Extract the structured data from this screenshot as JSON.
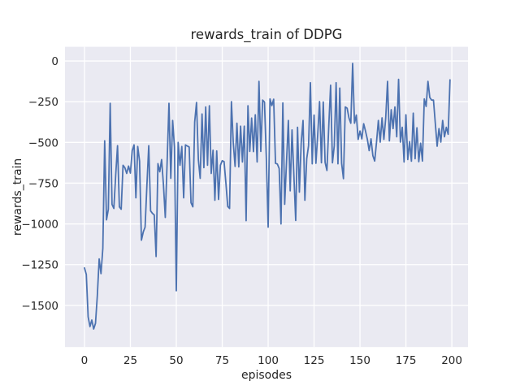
{
  "chart_data": {
    "type": "line",
    "title": "rewards_train of DDPG",
    "xlabel": "episodes",
    "ylabel": "rewards_train",
    "x_start": 0,
    "x_step": 1,
    "series_name": "rewards_train",
    "values": [
      -1270,
      -1310,
      -1570,
      -1630,
      -1590,
      -1645,
      -1610,
      -1440,
      -1215,
      -1305,
      -1150,
      -490,
      -975,
      -910,
      -260,
      -880,
      -905,
      -700,
      -520,
      -895,
      -910,
      -640,
      -655,
      -690,
      -645,
      -688,
      -550,
      -515,
      -840,
      -525,
      -615,
      -1100,
      -1050,
      -1020,
      -760,
      -520,
      -920,
      -935,
      -945,
      -1200,
      -630,
      -680,
      -605,
      -760,
      -960,
      -620,
      -260,
      -720,
      -365,
      -530,
      -1410,
      -500,
      -640,
      -525,
      -840,
      -515,
      -522,
      -528,
      -870,
      -895,
      -375,
      -255,
      -605,
      -720,
      -325,
      -655,
      -282,
      -640,
      -275,
      -690,
      -548,
      -855,
      -552,
      -850,
      -640,
      -612,
      -618,
      -750,
      -893,
      -905,
      -250,
      -500,
      -647,
      -382,
      -650,
      -400,
      -620,
      -400,
      -980,
      -275,
      -555,
      -350,
      -556,
      -330,
      -620,
      -125,
      -555,
      -240,
      -252,
      -590,
      -1020,
      -233,
      -274,
      -235,
      -628,
      -632,
      -660,
      -1000,
      -257,
      -880,
      -620,
      -365,
      -797,
      -423,
      -700,
      -979,
      -407,
      -805,
      -500,
      -365,
      -855,
      -600,
      -520,
      -133,
      -631,
      -332,
      -628,
      -450,
      -249,
      -625,
      -252,
      -622,
      -672,
      -400,
      -149,
      -625,
      -520,
      -133,
      -631,
      -166,
      -628,
      -722,
      -282,
      -290,
      -350,
      -382,
      -15,
      -382,
      -332,
      -481,
      -430,
      -478,
      -385,
      -430,
      -480,
      -550,
      -478,
      -581,
      -614,
      -498,
      -365,
      -498,
      -349,
      -481,
      -350,
      -125,
      -490,
      -299,
      -415,
      -282,
      -465,
      -113,
      -498,
      -407,
      -620,
      -330,
      -605,
      -495,
      -615,
      -320,
      -600,
      -410,
      -618,
      -505,
      -614,
      -233,
      -279,
      -125,
      -224,
      -240,
      -240,
      -382,
      -523,
      -415,
      -498,
      -365,
      -465,
      -407,
      -450,
      -116
    ],
    "xticks": [
      0,
      25,
      50,
      75,
      100,
      125,
      150,
      175,
      200
    ],
    "xtick_labels": [
      "0",
      "25",
      "50",
      "75",
      "100",
      "125",
      "150",
      "175",
      "200"
    ],
    "yticks": [
      0,
      -250,
      -500,
      -750,
      -1000,
      -1250,
      -1500
    ],
    "ytick_labels": [
      "0",
      "−250",
      "−500",
      "−750",
      "−1000",
      "−1250",
      "−1500"
    ],
    "xlim": [
      -10.6,
      208.8
    ],
    "ylim": [
      -1756,
      87
    ],
    "grid": true,
    "legend_position": "none",
    "line_color": "#4c72b0",
    "plot_bg_color": "#eaeaf2",
    "grid_color": "#ffffff",
    "text_color": "#262626",
    "figure_bg_color": "#ffffff"
  }
}
